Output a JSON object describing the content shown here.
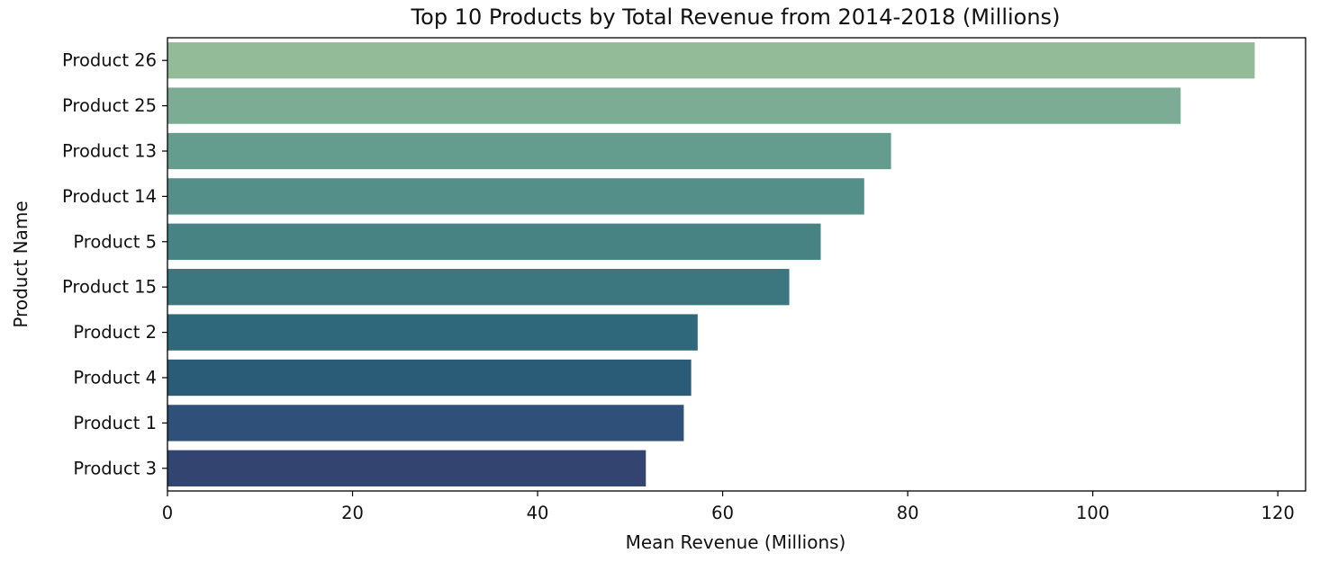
{
  "chart_data": {
    "type": "bar",
    "orientation": "horizontal",
    "title": "Top 10 Products by Total Revenue from 2014-2018 (Millions)",
    "xlabel": "Mean Revenue (Millions)",
    "ylabel": "Product Name",
    "xlim": [
      0,
      123
    ],
    "xticks": [
      0,
      20,
      40,
      60,
      80,
      100,
      120
    ],
    "grid": false,
    "categories": [
      "Product 26",
      "Product 25",
      "Product 13",
      "Product 14",
      "Product 5",
      "Product 15",
      "Product 2",
      "Product 4",
      "Product 1",
      "Product 3"
    ],
    "values": [
      117.5,
      109.5,
      78.2,
      75.3,
      70.6,
      67.2,
      57.3,
      56.6,
      55.8,
      51.7
    ],
    "colors": [
      "#94bb98",
      "#7cac93",
      "#649c8e",
      "#558f89",
      "#478383",
      "#3c777f",
      "#2f687a",
      "#2a5c78",
      "#2f5078",
      "#344470"
    ]
  }
}
